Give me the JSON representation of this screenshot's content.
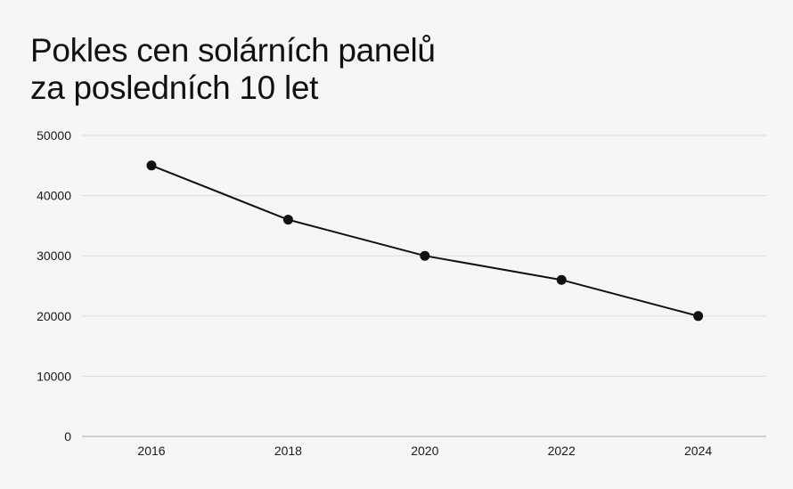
{
  "chart_data": {
    "type": "line",
    "title_lines": [
      "Pokles cen solárních panelů",
      "za posledních 10 let"
    ],
    "x": [
      "2016",
      "2018",
      "2020",
      "2022",
      "2024"
    ],
    "values": [
      45000,
      36000,
      30000,
      26000,
      20000
    ],
    "y_ticks": [
      "0",
      "10000",
      "20000",
      "30000",
      "40000",
      "50000"
    ],
    "xlabel": "",
    "ylabel": "",
    "ylim": [
      0,
      50000
    ],
    "grid": "horizontal",
    "legend": "none",
    "colors": {
      "line": "#111111",
      "marker": "#111111",
      "grid": "#dddddd",
      "axis": "#a8a8a8",
      "background": "#f6f6f6"
    }
  }
}
